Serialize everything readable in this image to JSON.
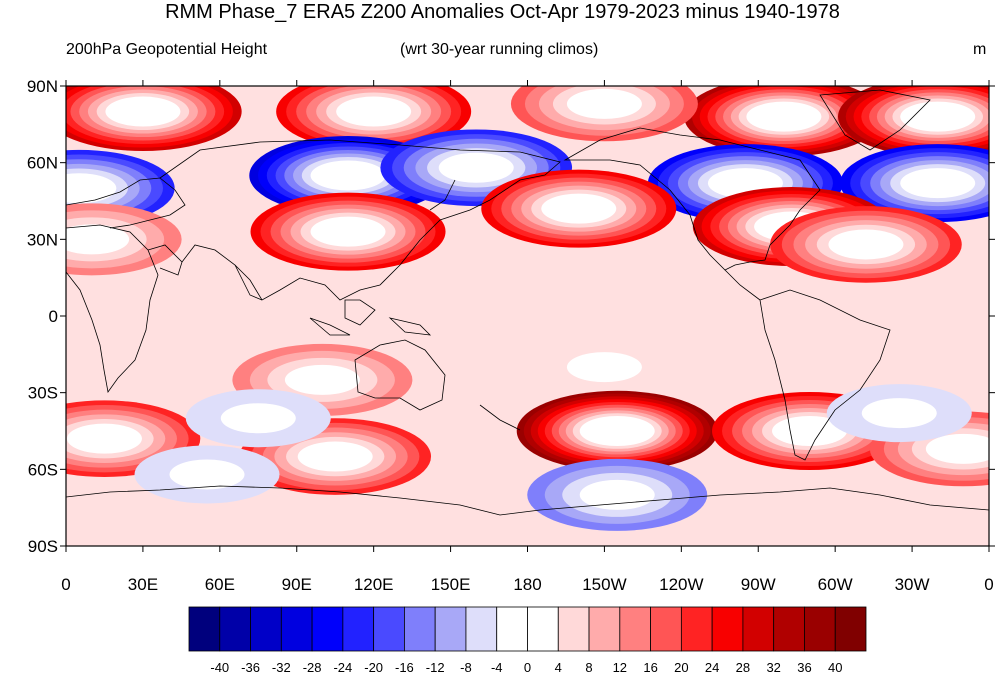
{
  "figure": {
    "title": "RMM Phase_7 ERA5 Z200 Anomalies Oct-Apr 1979-2023 minus 1940-1978",
    "left_subtitle": "200hPa Geopotential Height",
    "center_subtitle": "(wrt 30-year running climos)",
    "units": "m"
  },
  "map": {
    "projection": "cylindrical-equidistant",
    "lon_range": [
      0,
      360
    ],
    "lat_range": [
      -90,
      90
    ],
    "lat_ticks": [
      "90N",
      "60N",
      "30N",
      "0",
      "30S",
      "60S",
      "90S"
    ],
    "lon_ticks": [
      "0",
      "30E",
      "60E",
      "90E",
      "120E",
      "150E",
      "180",
      "150W",
      "120W",
      "90W",
      "60W",
      "30W",
      "0"
    ],
    "features": [
      "coastlines"
    ],
    "anomaly_centers": [
      {
        "lon": 30,
        "lat": 80,
        "value": 32
      },
      {
        "lon": 120,
        "lat": 80,
        "value": 28
      },
      {
        "lon": 280,
        "lat": 78,
        "value": 36
      },
      {
        "lon": 340,
        "lat": 78,
        "value": 36
      },
      {
        "lon": 210,
        "lat": 83,
        "value": 20
      },
      {
        "lon": 5,
        "lat": 50,
        "value": -24
      },
      {
        "lon": 110,
        "lat": 55,
        "value": -32
      },
      {
        "lon": 160,
        "lat": 58,
        "value": -24
      },
      {
        "lon": 265,
        "lat": 52,
        "value": -28
      },
      {
        "lon": 340,
        "lat": 52,
        "value": -28
      },
      {
        "lon": 110,
        "lat": 33,
        "value": 28
      },
      {
        "lon": 200,
        "lat": 42,
        "value": 28
      },
      {
        "lon": 283,
        "lat": 35,
        "value": 32
      },
      {
        "lon": 312,
        "lat": 28,
        "value": 24
      },
      {
        "lon": 10,
        "lat": 30,
        "value": 16
      },
      {
        "lon": 215,
        "lat": -45,
        "value": 40
      },
      {
        "lon": 290,
        "lat": -45,
        "value": 28
      },
      {
        "lon": 15,
        "lat": -48,
        "value": 24
      },
      {
        "lon": 105,
        "lat": -55,
        "value": 24
      },
      {
        "lon": 350,
        "lat": -52,
        "value": 20
      },
      {
        "lon": 100,
        "lat": -25,
        "value": 16
      },
      {
        "lon": 215,
        "lat": -70,
        "value": -16
      },
      {
        "lon": 75,
        "lat": -40,
        "value": -8
      },
      {
        "lon": 55,
        "lat": -62,
        "value": -8
      },
      {
        "lon": 325,
        "lat": -38,
        "value": -8
      },
      {
        "lon": 210,
        "lat": -20,
        "value": -4
      }
    ]
  },
  "colorbar": {
    "labels": [
      "-40",
      "-36",
      "-32",
      "-28",
      "-24",
      "-20",
      "-16",
      "-12",
      "-8",
      "-4",
      "0",
      "4",
      "8",
      "12",
      "16",
      "20",
      "24",
      "28",
      "32",
      "36",
      "40"
    ],
    "colors": [
      "#00007d",
      "#0000a8",
      "#0000c8",
      "#0000e0",
      "#0000fb",
      "#2222ff",
      "#4a4aff",
      "#7f7ffb",
      "#a8a8f7",
      "#dedefa",
      "#ffffff",
      "#ffffff",
      "#ffd9d9",
      "#ffabab",
      "#ff8080",
      "#ff5555",
      "#ff2323",
      "#f80000",
      "#d20000",
      "#b00000",
      "#9a0000",
      "#800000"
    ]
  }
}
